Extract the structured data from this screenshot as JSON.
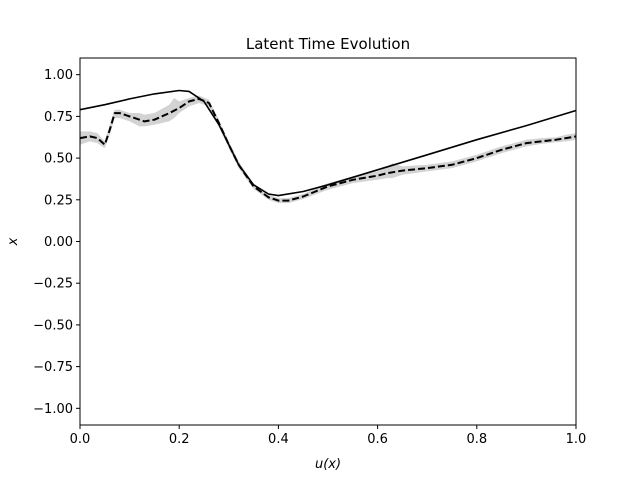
{
  "chart_data": {
    "type": "line",
    "title": "Latent Time Evolution",
    "xlabel": "u(x)",
    "ylabel": "x",
    "xlim": [
      0,
      1
    ],
    "ylim": [
      -1.1,
      1.1
    ],
    "grid": false,
    "x_ticks": [
      "0.0",
      "0.2",
      "0.4",
      "0.6",
      "0.8",
      "1.0"
    ],
    "y_ticks": [
      "−1.00",
      "−0.75",
      "−0.50",
      "−0.25",
      "0.00",
      "0.25",
      "0.50",
      "0.75",
      "1.00"
    ],
    "series": [
      {
        "style": "solid",
        "color": "#000000",
        "x": [
          0.0,
          0.05,
          0.1,
          0.15,
          0.2,
          0.22,
          0.25,
          0.28,
          0.3,
          0.32,
          0.35,
          0.38,
          0.4,
          0.45,
          0.5,
          0.6,
          0.7,
          0.8,
          0.9,
          1.0
        ],
        "y": [
          0.79,
          0.82,
          0.855,
          0.885,
          0.905,
          0.9,
          0.84,
          0.7,
          0.58,
          0.46,
          0.34,
          0.285,
          0.275,
          0.3,
          0.34,
          0.43,
          0.52,
          0.61,
          0.695,
          0.785
        ]
      },
      {
        "style": "dashed",
        "color": "#000000",
        "x": [
          0.0,
          0.02,
          0.035,
          0.05,
          0.06,
          0.07,
          0.08,
          0.1,
          0.12,
          0.13,
          0.15,
          0.18,
          0.2,
          0.22,
          0.24,
          0.26,
          0.28,
          0.3,
          0.32,
          0.35,
          0.38,
          0.4,
          0.42,
          0.45,
          0.5,
          0.55,
          0.6,
          0.62,
          0.65,
          0.7,
          0.75,
          0.8,
          0.85,
          0.9,
          0.93,
          0.96,
          0.98,
          1.0
        ],
        "y": [
          0.62,
          0.63,
          0.62,
          0.58,
          0.67,
          0.77,
          0.77,
          0.75,
          0.73,
          0.72,
          0.73,
          0.77,
          0.8,
          0.84,
          0.855,
          0.83,
          0.71,
          0.58,
          0.46,
          0.33,
          0.265,
          0.245,
          0.245,
          0.27,
          0.33,
          0.37,
          0.395,
          0.41,
          0.425,
          0.44,
          0.46,
          0.5,
          0.55,
          0.59,
          0.6,
          0.61,
          0.62,
          0.63
        ]
      }
    ],
    "uncertainty_band": {
      "color": "#d3d3d3",
      "x": [
        0.0,
        0.02,
        0.035,
        0.05,
        0.06,
        0.07,
        0.08,
        0.1,
        0.12,
        0.13,
        0.15,
        0.18,
        0.19,
        0.2,
        0.22,
        0.24,
        0.26,
        0.28,
        0.3,
        0.32,
        0.35,
        0.38,
        0.4,
        0.42,
        0.45,
        0.5,
        0.55,
        0.6,
        0.62,
        0.63,
        0.65,
        0.7,
        0.75,
        0.8,
        0.85,
        0.9,
        0.93,
        0.96,
        0.98,
        1.0
      ],
      "lower": [
        0.58,
        0.6,
        0.59,
        0.56,
        0.64,
        0.74,
        0.74,
        0.72,
        0.69,
        0.69,
        0.7,
        0.72,
        0.74,
        0.77,
        0.81,
        0.83,
        0.81,
        0.69,
        0.56,
        0.44,
        0.315,
        0.25,
        0.23,
        0.23,
        0.255,
        0.31,
        0.35,
        0.37,
        0.38,
        0.38,
        0.4,
        0.42,
        0.44,
        0.48,
        0.53,
        0.57,
        0.585,
        0.595,
        0.6,
        0.61
      ],
      "upper": [
        0.66,
        0.66,
        0.65,
        0.6,
        0.7,
        0.79,
        0.79,
        0.77,
        0.77,
        0.76,
        0.77,
        0.82,
        0.86,
        0.84,
        0.86,
        0.875,
        0.85,
        0.73,
        0.6,
        0.48,
        0.345,
        0.28,
        0.26,
        0.26,
        0.285,
        0.35,
        0.39,
        0.42,
        0.45,
        0.47,
        0.45,
        0.46,
        0.48,
        0.52,
        0.57,
        0.61,
        0.62,
        0.625,
        0.64,
        0.65
      ]
    }
  }
}
